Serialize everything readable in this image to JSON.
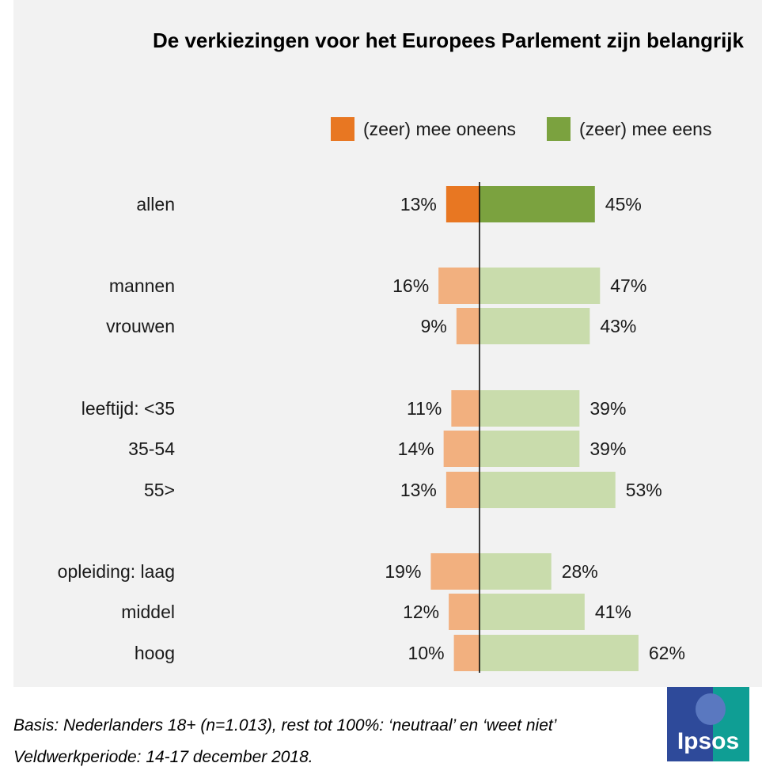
{
  "chart_data": {
    "type": "bar",
    "orientation": "horizontal-diverging",
    "title": "De verkiezingen voor het Europees Parlement zijn belangrijk",
    "legend": [
      {
        "name": "(zeer) mee oneens",
        "color": "#e87722"
      },
      {
        "name": "(zeer) mee eens",
        "color": "#7ba23f"
      }
    ],
    "categories": [
      "allen",
      "mannen",
      "vrouwen",
      "leeftijd: <35",
      "35-54",
      "55>",
      "opleiding: laag",
      "middel",
      "hoog"
    ],
    "series": [
      {
        "name": "(zeer) mee oneens",
        "values": [
          13,
          16,
          9,
          11,
          14,
          13,
          19,
          12,
          10
        ],
        "labels": [
          "13%",
          "16%",
          "9%",
          "11%",
          "14%",
          "13%",
          "19%",
          "12%",
          "10%"
        ]
      },
      {
        "name": "(zeer) mee eens",
        "values": [
          45,
          47,
          43,
          39,
          39,
          53,
          28,
          41,
          62
        ],
        "labels": [
          "45%",
          "47%",
          "43%",
          "39%",
          "39%",
          "53%",
          "28%",
          "41%",
          "62%"
        ]
      }
    ],
    "colors": {
      "disagree_dark": "#e87722",
      "disagree_light": "#f2b07f",
      "agree_dark": "#7ba23f",
      "agree_light": "#c9dcac",
      "axis": "#000000"
    },
    "legend_position": "top-right",
    "grid": false
  },
  "footer": {
    "line1": "Basis: Nederlanders 18+ (n=1.013), rest tot 100%: ‘neutraal’ en ‘weet niet’",
    "line2": "Veldwerkperiode: 14-17 december 2018."
  },
  "logo": {
    "text": "Ipsos"
  }
}
